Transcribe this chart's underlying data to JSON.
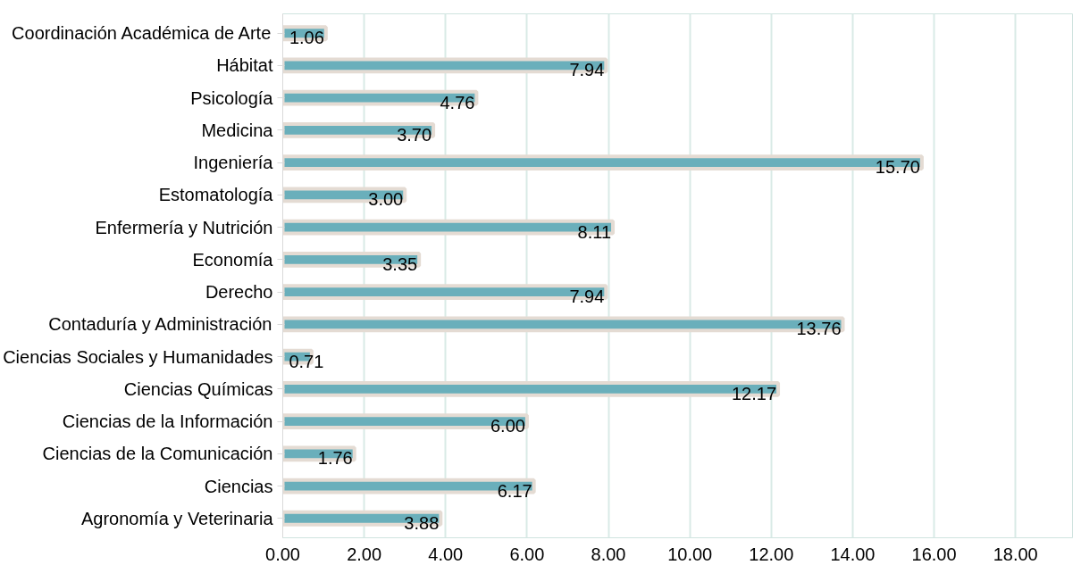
{
  "chart_data": {
    "type": "bar",
    "orientation": "horizontal",
    "categories": [
      "Coordinación Académica de Arte",
      "Hábitat",
      "Psicología",
      "Medicina",
      "Ingeniería",
      "Estomatología",
      "Enfermería y Nutrición",
      "Economía",
      "Derecho",
      "Contaduría y Administración",
      "Ciencias Sociales y Humanidades",
      "Ciencias Químicas",
      "Ciencias de la Información",
      "Ciencias de la Comunicación",
      "Ciencias",
      "Agronomía y Veterinaria"
    ],
    "values": [
      1.06,
      7.94,
      4.76,
      3.7,
      15.7,
      3.0,
      8.11,
      3.35,
      7.94,
      13.76,
      0.71,
      12.17,
      6.0,
      1.76,
      6.17,
      3.88
    ],
    "value_labels": [
      "1.06",
      "7.94",
      "4.76",
      "3.70",
      "15.70",
      "3.00",
      "8.11",
      "3.35",
      "7.94",
      "13.76",
      "0.71",
      "12.17",
      "6.00",
      "1.76",
      "6.17",
      "3.88"
    ],
    "color": "#6aafbb",
    "xlim": [
      0,
      19.4
    ],
    "xticks": [
      {
        "value": 0,
        "label": "0.00"
      },
      {
        "value": 2,
        "label": "2.00"
      },
      {
        "value": 4,
        "label": "4.00"
      },
      {
        "value": 6,
        "label": "6.00"
      },
      {
        "value": 8,
        "label": "8.00"
      },
      {
        "value": 10,
        "label": "10.00"
      },
      {
        "value": 12,
        "label": "12.00"
      },
      {
        "value": 14,
        "label": "14.00"
      },
      {
        "value": 16,
        "label": "16.00"
      },
      {
        "value": 18,
        "label": "18.00"
      }
    ],
    "grid": "x"
  }
}
